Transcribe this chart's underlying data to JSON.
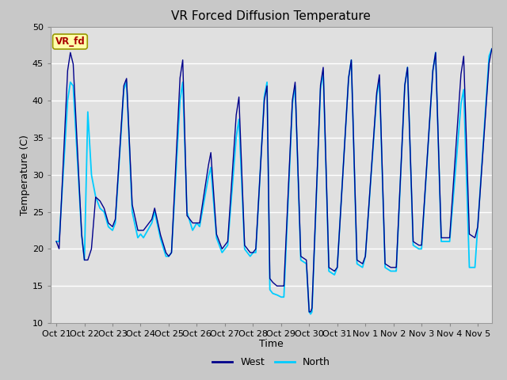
{
  "title": "VR Forced Diffusion Temperature",
  "xlabel": "Time",
  "ylabel": "Temperature (C)",
  "ylim": [
    10,
    50
  ],
  "west_color": "#00008B",
  "north_color": "#00CCFF",
  "annotation_text": "VR_fd",
  "annotation_bg": "#FFFFAA",
  "annotation_border": "#999900",
  "annotation_text_color": "#AA0000",
  "tick_labels": [
    "Oct 21",
    "Oct 22",
    "Oct 23",
    "Oct 24",
    "Oct 25",
    "Oct 26",
    "Oct 27",
    "Oct 28",
    "Oct 29",
    "Oct 30",
    "Oct 31",
    "Nov 1",
    "Nov 2",
    "Nov 3",
    "Nov 4",
    "Nov 5"
  ],
  "tick_positions": [
    0,
    1,
    2,
    3,
    4,
    5,
    6,
    7,
    8,
    9,
    10,
    11,
    12,
    13,
    14,
    15
  ],
  "legend_west": "West",
  "legend_north": "North",
  "fig_bg": "#c8c8c8",
  "plot_bg": "#e0e0e0",
  "grid_color": "#ffffff"
}
